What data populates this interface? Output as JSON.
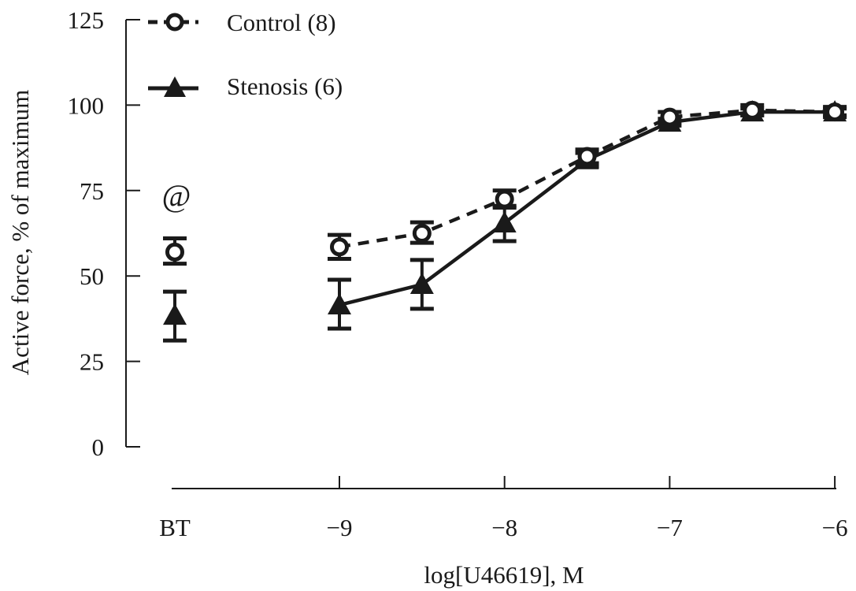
{
  "chart_data": {
    "type": "line",
    "xlabel": "log[U46619], M",
    "ylabel": "Active force, % of maximum",
    "ylim": [
      0,
      125
    ],
    "yticks": [
      0,
      25,
      50,
      75,
      100,
      125
    ],
    "xticks": [
      "BT",
      "−9",
      "−8",
      "−7",
      "−6"
    ],
    "xtick_values": [
      "BT",
      -9,
      -8,
      -7,
      -6
    ],
    "grid": false,
    "legend_position": "top-left",
    "annotation": "@",
    "annotation_at": "BT",
    "series": [
      {
        "name": "Control (8)",
        "marker": "open-circle",
        "line": "dashed",
        "color": "#1a1a1a",
        "x": [
          "BT",
          -9,
          -8.5,
          -8,
          -7.5,
          -7,
          -6.5,
          -6
        ],
        "y": [
          57,
          58.5,
          62.5,
          72.5,
          85,
          96.5,
          98.5,
          98
        ],
        "err_low": [
          53.6,
          55,
          59.7,
          70,
          83,
          95,
          97,
          96.5
        ],
        "err_high": [
          61,
          62,
          65.7,
          75,
          87,
          98,
          100,
          99.5
        ]
      },
      {
        "name": "Stenosis (6)",
        "marker": "filled-triangle",
        "line": "solid",
        "color": "#1a1a1a",
        "x": [
          "BT",
          -9,
          -8.5,
          -8,
          -7.5,
          -7,
          -6.5,
          -6
        ],
        "y": [
          38.5,
          41.5,
          47.5,
          65.5,
          84,
          95,
          98,
          98
        ],
        "err_low": [
          31.1,
          34.6,
          40.4,
          60.2,
          82,
          94,
          97,
          97
        ],
        "err_high": [
          45.4,
          48.9,
          54.7,
          70.5,
          86,
          96,
          99,
          99
        ]
      }
    ]
  }
}
